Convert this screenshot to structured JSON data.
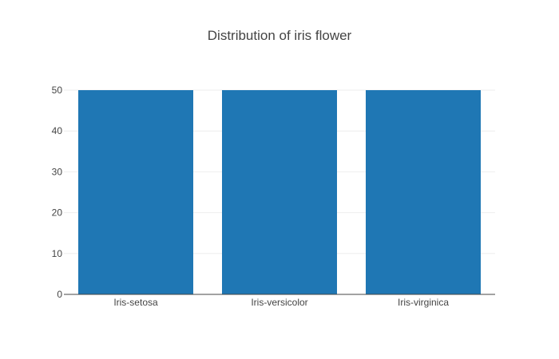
{
  "chart_data": {
    "type": "bar",
    "title": "Distribution of iris flower",
    "categories": [
      "Iris-setosa",
      "Iris-versicolor",
      "Iris-virginica"
    ],
    "values": [
      50,
      50,
      50
    ],
    "xlabel": "",
    "ylabel": "",
    "ylim": [
      0,
      50
    ],
    "yticks": [
      0,
      10,
      20,
      30,
      40,
      50
    ],
    "grid": true,
    "legend": "none",
    "colors": {
      "bar": "#1f77b4",
      "grid": "#eeeeee",
      "axis": "#444444",
      "text": "#444444"
    }
  }
}
